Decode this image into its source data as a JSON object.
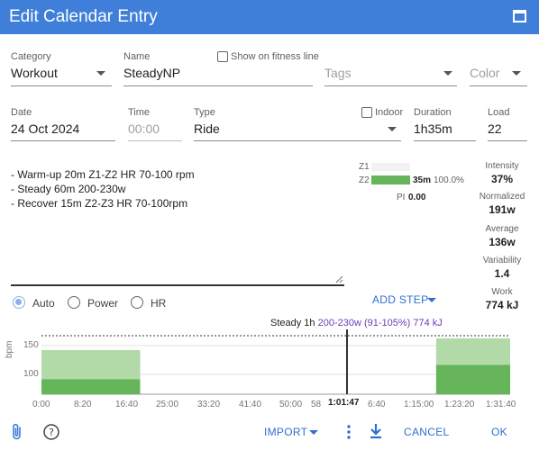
{
  "window": {
    "title": "Edit Calendar Entry"
  },
  "fields": {
    "category": {
      "label": "Category",
      "value": "Workout"
    },
    "name": {
      "label": "Name",
      "value": "SteadyNP"
    },
    "show_fitness": {
      "label": "Show on fitness line"
    },
    "tags": {
      "placeholder": "Tags"
    },
    "color": {
      "placeholder": "Color"
    },
    "date": {
      "label": "Date",
      "value": "24 Oct 2024"
    },
    "time": {
      "label": "Time",
      "placeholder": "00:00"
    },
    "type": {
      "label": "Type",
      "value": "Ride"
    },
    "indoor": {
      "label": "Indoor"
    },
    "duration": {
      "label": "Duration",
      "value": "1h35m"
    },
    "load": {
      "label": "Load",
      "value": "22"
    }
  },
  "notes": {
    "lines": [
      "- Warm-up 20m Z1-Z2 HR 70-100 rpm",
      "- Steady 60m 200-230w",
      "- Recover 15m Z2-Z3 HR 70-100rpm"
    ]
  },
  "zones": {
    "z1_label": "Z1",
    "z2_label": "Z2",
    "z2_time": "35m",
    "z2_pct": "100.0%",
    "z2_fraction": 1.0,
    "pi_label": "PI",
    "pi_value": "0.00"
  },
  "stats": [
    {
      "label": "Intensity",
      "value": "37%"
    },
    {
      "label": "Normalized",
      "value": "191w"
    },
    {
      "label": "Average",
      "value": "136w"
    },
    {
      "label": "Variability",
      "value": "1.4"
    },
    {
      "label": "Work",
      "value": "774 kJ"
    }
  ],
  "mode": {
    "options": [
      "Auto",
      "Power",
      "HR"
    ],
    "selected": "Auto"
  },
  "add_step_label": "ADD STEP",
  "hover": {
    "step": "Steady 1h",
    "detail": "200-230w (91-105%) 774 kJ",
    "cursor_time": "1:01:47"
  },
  "chart_data": {
    "type": "area",
    "ylabel": "bpm",
    "yticks": [
      "150",
      "100"
    ],
    "xticks": [
      "0:00",
      "8:20",
      "16:40",
      "25:00",
      "33:20",
      "41:40",
      "50:00",
      "58",
      "6:40",
      "1:15:00",
      "1:23:20",
      "1:31:40"
    ],
    "steps": [
      {
        "start_min": 0,
        "end_min": 20,
        "low_bpm": 93,
        "high_bpm": 148
      },
      {
        "start_min": 80,
        "end_min": 95,
        "low_bpm": 120,
        "high_bpm": 170
      }
    ],
    "x_range_min": [
      0,
      95
    ],
    "y_range_bpm": [
      65,
      175
    ]
  },
  "footer": {
    "import_label": "IMPORT",
    "cancel_label": "CANCEL",
    "ok_label": "OK"
  },
  "colors": {
    "titlebar": "#3f7fd9",
    "accent": "#2f6fd1",
    "zone_green": "#66b55a",
    "zone_light": "#b2d9a8",
    "purple": "#6a3fb5"
  }
}
